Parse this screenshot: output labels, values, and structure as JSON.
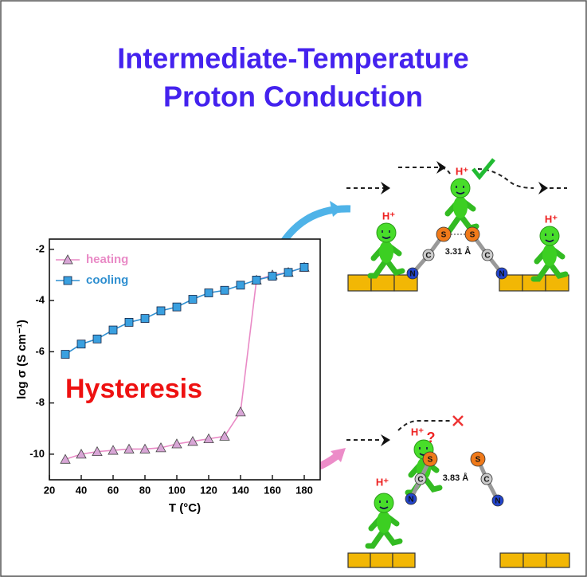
{
  "header": {
    "title_line1": "Intermediate-Temperature",
    "title_line2": "Proton Conduction"
  },
  "chart_data": {
    "type": "line",
    "x": [
      30,
      40,
      50,
      60,
      70,
      80,
      90,
      100,
      110,
      120,
      130,
      140,
      150,
      160,
      170,
      180
    ],
    "series": [
      {
        "name": "heating",
        "color": "#e98ac6",
        "marker": "triangle",
        "marker_color": "#d8a6d6",
        "values": [
          -10.2,
          -10.0,
          -9.9,
          -9.85,
          -9.8,
          -9.8,
          -9.75,
          -9.6,
          -9.5,
          -9.4,
          -9.3,
          -8.35,
          -3.2,
          -3.0,
          -2.9,
          -2.7
        ]
      },
      {
        "name": "cooling",
        "color": "#2f8fd0",
        "marker": "square",
        "marker_color": "#3aa0e0",
        "values": [
          -6.1,
          -5.7,
          -5.5,
          -5.15,
          -4.85,
          -4.7,
          -4.4,
          -4.25,
          -3.95,
          -3.7,
          -3.6,
          -3.4,
          -3.2,
          -3.05,
          -2.9,
          -2.7
        ]
      }
    ],
    "xlim": [
      20,
      190
    ],
    "xticks": [
      20,
      40,
      60,
      80,
      100,
      120,
      140,
      160,
      180
    ],
    "ylim": [
      -11,
      -1.6
    ],
    "yticks": [
      -10,
      -8,
      -6,
      -4,
      -2
    ],
    "xlabel": "T (°C)",
    "ylabel": "log σ (S cm⁻¹)",
    "annotation": "Hysteresis",
    "legend": "upper left",
    "grid": false
  },
  "diagram": {
    "top": {
      "distance": "3.31 Å",
      "protons": [
        "H⁺",
        "H⁺",
        "H⁺"
      ],
      "atoms": [
        "S",
        "S",
        "C",
        "C",
        "N",
        "N"
      ]
    },
    "bottom": {
      "distance": "3.83 Å",
      "protons": [
        "H⁺",
        "H⁺"
      ],
      "question": "?",
      "atoms": [
        "S",
        "S",
        "C",
        "C",
        "N",
        "N"
      ]
    }
  }
}
